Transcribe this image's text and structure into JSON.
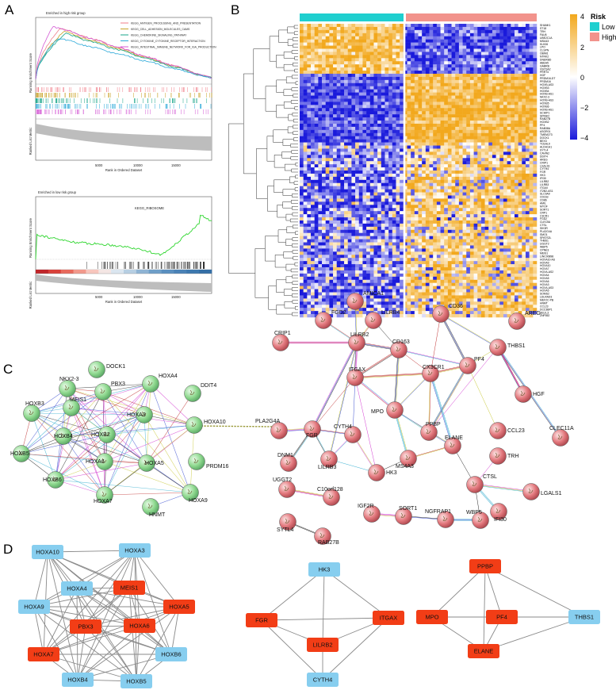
{
  "panels": {
    "A": {
      "label": "A",
      "top": {
        "title": "Enriched in high risk group",
        "ylabel": "Running Enrichment Score",
        "ylabel2": "Ranked List Metric",
        "xlabel": "Rank in Ordered Dataset",
        "ticks": [
          "5000",
          "10000",
          "15000"
        ],
        "legend": [
          {
            "label": "KEGG_ANTIGEN_PROCESSING_AND_PRESENTATION",
            "color": "#f07f8a"
          },
          {
            "label": "KEGG_CELL_ADHESION_MOLECULES_CAMS",
            "color": "#c9a227"
          },
          {
            "label": "KEGG_CHEMOKINE_SIGNALING_PATHWAY",
            "color": "#1aa68a"
          },
          {
            "label": "KEGG_CYTOKINE_CYTOKINE_RECEPTOR_INTERACTION",
            "color": "#2aa8d8"
          },
          {
            "label": "KEGG_INTESTINAL_IMMUNE_NETWORK_FOR_IGA_PRODUCTION",
            "color": "#d45bd4"
          }
        ]
      },
      "bottom": {
        "title": "Enriched in low risk group",
        "pathway": "KEGG_RIBOSOME",
        "ylabel": "Running Enrichment Score",
        "ylabel2": "Ranked List Metric",
        "xlabel": "Rank in Ordered Dataset",
        "ticks": [
          "5000",
          "10000",
          "15000"
        ]
      }
    },
    "B": {
      "label": "B",
      "legend_title": "Risk",
      "groups": [
        {
          "label": "Low",
          "color": "#1fcfcf"
        },
        {
          "label": "High",
          "color": "#f2938c"
        }
      ],
      "colorbar": {
        "labels": [
          "4",
          "2",
          "0",
          "−2",
          "−4"
        ],
        "high": "#f2a81d",
        "mid": "#ffffff",
        "low": "#1a1adb"
      },
      "genes": [
        "SHANK1",
        "ST18",
        "TRH",
        "FAU6",
        "UBE2C1A",
        "MSA43",
        "KLK06",
        "LPO",
        "CLSPN",
        "OBIM1",
        "NTRK2",
        "DNERBD",
        "ABEA5",
        "GABRB",
        "VSIT3A2",
        "PRRT4",
        "HGF",
        "PRDM16-DT",
        "PRDM16",
        "HOXB-AS3",
        "HOXB3",
        "HOXB4",
        "HOXB-AS1",
        "NKX2-3",
        "HOXB-AS3",
        "HOXB5",
        "HOXB6",
        "HOXB-AS1",
        "SCHIP1",
        "SPINK2",
        "RAB27B",
        "HOXB2",
        "PF4",
        "RAB38A",
        "ASGR01",
        "TMEM273",
        "DOCK1",
        "BEX3",
        "TCEAL9",
        "ALDH1A1",
        "SYTL4",
        "CAVIN2",
        "DDIT4",
        "AREG",
        "CRIP1",
        "LGALS1",
        "CYTH4",
        "FGR",
        "HK3",
        "IFI30",
        "LILRB2",
        "LILRB3",
        "ITGAX",
        "IT2B2-AS1",
        "SLC9A9",
        "CD163",
        "CD86",
        "AMIL",
        "MYOF",
        "SORT1",
        "CRP1",
        "C3CR1",
        "FGD2",
        "CLEC5A",
        "CTSL",
        "SIK3R",
        "PLA2G4A",
        "SMO1",
        "SPATS2L",
        "THBS1",
        "UGGT2",
        "WBP5",
        "CPNE3",
        "MEIS1",
        "LINC00898",
        "HOXA10-AS",
        "HOXA9",
        "HOXA10",
        "HOXA7",
        "HOXA-AS2",
        "HOXA4",
        "HOXA5",
        "HOXA6",
        "HOXA3",
        "HOXA-AS3",
        "HOXA5",
        "SOMS2",
        "LDLRAD3",
        "MEF2C-PB",
        "HNMT",
        "CCL23",
        "DCC3BP1",
        "SELIL3",
        "ZNF552"
      ]
    },
    "C": {
      "label": "C",
      "left_nodes": [
        "DOCK1",
        "NKX2-3",
        "PBX3",
        "HOXA4",
        "DDIT4",
        "HOXB3",
        "MEIS1",
        "HOXA3",
        "HOXA10",
        "HOXB2",
        "HOXB4",
        "HOXB5",
        "HOXA6",
        "HOXA5",
        "PRDM16",
        "HOXB6",
        "HOXA7",
        "HOXA9",
        "HNMT"
      ],
      "right_nodes": [
        "AMICA1",
        "FGD2",
        "LILRB4",
        "CD36",
        "AREG",
        "CRIP1",
        "LILRB2",
        "CD163",
        "CX3CR1",
        "PF4",
        "THBS1",
        "ITGAX",
        "HGF",
        "PLA2G4A",
        "FGR",
        "MPO",
        "PPBP",
        "CLEC11A",
        "CYTH4",
        "CCL23",
        "DNM1",
        "LILRB3",
        "HK3",
        "MS4A3",
        "ELANE",
        "TRH",
        "CTSL",
        "UGGT2",
        "C10orf128",
        "LGALS1",
        "IGF2R",
        "SORT1",
        "NGFRAP1",
        "WBP5",
        "IFI30",
        "SYTL4",
        "RAB27B"
      ]
    },
    "D": {
      "label": "D",
      "colors": {
        "hub": "#f23d16",
        "other": "#87ceef"
      },
      "net1": [
        {
          "label": "HOXA10",
          "hub": false
        },
        {
          "label": "HOXA3",
          "hub": false
        },
        {
          "label": "HOXA4",
          "hub": false
        },
        {
          "label": "MEIS1",
          "hub": true
        },
        {
          "label": "HOXA9",
          "hub": false
        },
        {
          "label": "HOXA5",
          "hub": true
        },
        {
          "label": "PBX3",
          "hub": true
        },
        {
          "label": "HOXA6",
          "hub": true
        },
        {
          "label": "HOXA7",
          "hub": true
        },
        {
          "label": "HOXB6",
          "hub": false
        },
        {
          "label": "HOXB4",
          "hub": false
        },
        {
          "label": "HOXB5",
          "hub": false
        }
      ],
      "net2": [
        {
          "label": "HK3",
          "hub": false
        },
        {
          "label": "FGR",
          "hub": true
        },
        {
          "label": "ITGAX",
          "hub": true
        },
        {
          "label": "LILRB2",
          "hub": true
        },
        {
          "label": "CYTH4",
          "hub": false
        }
      ],
      "net3": [
        {
          "label": "PPBP",
          "hub": true
        },
        {
          "label": "MPO",
          "hub": true
        },
        {
          "label": "PF4",
          "hub": true
        },
        {
          "label": "THBS1",
          "hub": false
        },
        {
          "label": "ELANE",
          "hub": true
        }
      ]
    }
  }
}
